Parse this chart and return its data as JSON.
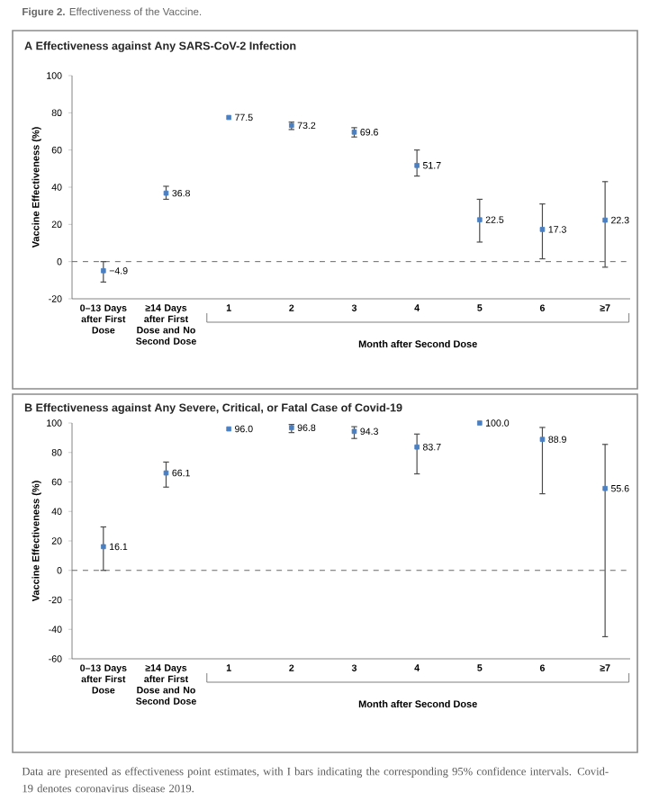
{
  "chart_data": [
    {
      "type": "scatter",
      "title": "**A**  Effectiveness against Any SARS-CoV-2 Infection",
      "ylabel": "Vaccine Effectiveness (%)",
      "xlabel": "Month after Second Dose",
      "annotations": [
        "**Figure 2.** Effectiveness of the Vaccine."
      ],
      "categories": [
        "0–13 Days after First Dose",
        "≥14 Days after First Dose and No Second Dose",
        "1",
        "2",
        "3",
        "4",
        "5",
        "6",
        "≥7"
      ],
      "values": [
        -4.9,
        36.8,
        77.5,
        73.2,
        69.6,
        51.7,
        22.5,
        17.3,
        22.3
      ],
      "errors": [
        [
          -11,
          0
        ],
        [
          33.5,
          40.5
        ],
        null,
        [
          71,
          75
        ],
        [
          67,
          72
        ],
        [
          46,
          60
        ],
        [
          10.5,
          33.5
        ],
        [
          1.5,
          31
        ],
        [
          -3,
          43
        ]
      ],
      "value_labels": [
        "−4.9",
        "36.8",
        "77.5",
        "73.2",
        "69.6",
        "51.7",
        "22.5",
        "17.3",
        "22.3"
      ],
      "color": "#4a7fc1",
      "marker": "square",
      "ylim": [
        -20,
        100
      ],
      "yticks": [
        -20,
        0,
        20,
        40,
        60,
        80,
        100
      ],
      "ref_lines": [
        {
          "axis": "y",
          "value": 0,
          "color": "#666666",
          "line_style": "dashed"
        }
      ]
    },
    {
      "type": "scatter",
      "title": "**B**  Effectiveness against Any Severe, Critical, or Fatal Case of Covid-19",
      "ylabel": "Vaccine Effectiveness (%)",
      "xlabel": "Month after Second Dose",
      "annotations": [
        "Data are presented as effectiveness point estimates, with I bars indicating the corresponding 95% confidence intervals. Covid-19 denotes coronavirus disease 2019."
      ],
      "categories": [
        "0–13 Days after First Dose",
        "≥14 Days after First Dose and No Second Dose",
        "1",
        "2",
        "3",
        "4",
        "5",
        "6",
        "≥7"
      ],
      "values": [
        16.1,
        66.1,
        96.0,
        96.8,
        94.3,
        83.7,
        100.0,
        88.9,
        55.6
      ],
      "errors": [
        [
          0,
          29.5
        ],
        [
          56.5,
          73.5
        ],
        null,
        [
          93.5,
          99
        ],
        [
          89.5,
          97.5
        ],
        [
          65.5,
          92.5
        ],
        null,
        [
          52,
          97
        ],
        [
          -45,
          85.5
        ]
      ],
      "value_labels": [
        "16.1",
        "66.1",
        "96.0",
        "96.8",
        "94.3",
        "83.7",
        "100.0",
        "88.9",
        "55.6"
      ],
      "color": "#4a7fc1",
      "marker": "square",
      "ylim": [
        -60,
        100
      ],
      "yticks": [
        -60,
        -40,
        -20,
        0,
        20,
        40,
        60,
        80,
        100
      ],
      "ref_lines": [
        {
          "axis": "y",
          "value": 0,
          "color": "#666666",
          "line_style": "dashed"
        }
      ]
    }
  ]
}
